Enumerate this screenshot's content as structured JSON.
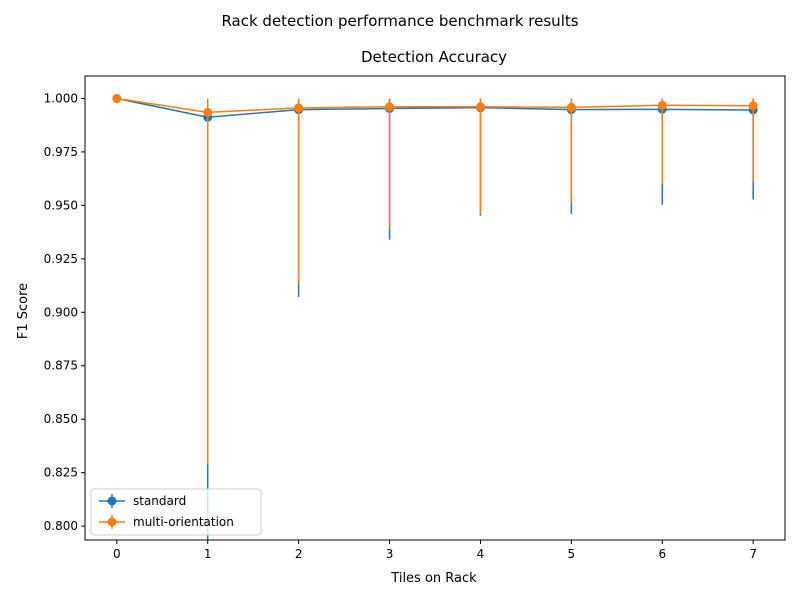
{
  "figure": {
    "suptitle": "Rack detection performance benchmark results"
  },
  "colors": {
    "standard": "#1f77b4",
    "multi_orientation": "#ff7f0e",
    "axis": "#000000",
    "background": "#ffffff"
  },
  "chart_data": {
    "type": "line",
    "title": "Detection Accuracy",
    "xlabel": "Tiles on Rack",
    "ylabel": "F1 Score",
    "xlim": [
      -0.35,
      7.35
    ],
    "ylim": [
      0.7935,
      1.0105
    ],
    "xticks": [
      0,
      1,
      2,
      3,
      4,
      5,
      6,
      7
    ],
    "xtick_labels": [
      "0",
      "1",
      "2",
      "3",
      "4",
      "5",
      "6",
      "7"
    ],
    "yticks": [
      0.8,
      0.825,
      0.85,
      0.875,
      0.9,
      0.925,
      0.95,
      0.975,
      1.0
    ],
    "ytick_labels": [
      "0.800",
      "0.825",
      "0.850",
      "0.875",
      "0.900",
      "0.925",
      "0.950",
      "0.975",
      "1.000"
    ],
    "grid": false,
    "legend_position": "lower-left",
    "x": [
      0,
      1,
      2,
      3,
      4,
      5,
      6,
      7
    ],
    "series": [
      {
        "name": "standard",
        "color_key": "standard",
        "marker": "circle",
        "values": [
          1.0,
          0.9912,
          0.9948,
          0.9953,
          0.9957,
          0.9948,
          0.9949,
          0.9946
        ],
        "err_lower": [
          1.0,
          0.793,
          0.9072,
          0.934,
          0.9452,
          0.946,
          0.9503,
          0.9527
        ],
        "err_upper": [
          1.0,
          1.0,
          1.0,
          1.0,
          1.0,
          1.0,
          1.0,
          1.0
        ]
      },
      {
        "name": "multi-orientation",
        "color_key": "multi_orientation",
        "marker": "circle",
        "values": [
          1.0,
          0.9935,
          0.9956,
          0.9961,
          0.9961,
          0.9958,
          0.9968,
          0.9966
        ],
        "err_lower": [
          1.0,
          0.8288,
          0.9138,
          0.9393,
          0.946,
          0.9507,
          0.9599,
          0.961
        ],
        "err_upper": [
          1.0,
          1.0,
          1.0,
          1.0,
          1.0,
          1.0,
          1.0,
          1.0
        ]
      }
    ]
  }
}
